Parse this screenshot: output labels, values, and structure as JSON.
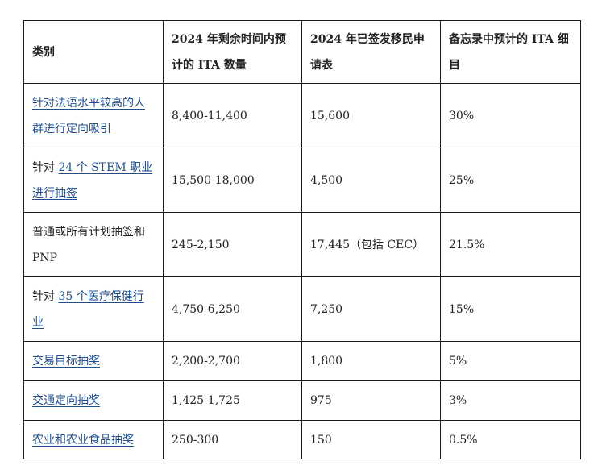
{
  "table": {
    "headers": [
      "类别",
      "2024 年剩余时间内预计的 ITA 数量",
      "2024 年已签发移民申请表",
      "备忘录中预计的 ITA 细目"
    ],
    "rows": [
      {
        "category_prefix": "",
        "category_link": "针对法语水平较高的人群进行定向吸引",
        "category_suffix": "",
        "expected_itas": "8,400-11,400",
        "issued_2024": "15,600",
        "breakdown": "30%"
      },
      {
        "category_prefix": "针对 ",
        "category_link": "24 个 STEM 职业进行抽签",
        "category_suffix": "",
        "expected_itas": "15,500-18,000",
        "issued_2024": "4,500",
        "breakdown": "25%"
      },
      {
        "category_prefix": "普通或所有计划抽签和 PNP",
        "category_link": "",
        "category_suffix": "",
        "expected_itas": "245-2,150",
        "issued_2024": "17,445（包括 CEC）",
        "breakdown": "21.5%"
      },
      {
        "category_prefix": "针对 ",
        "category_link": "35 个医疗保健行业",
        "category_suffix": "",
        "expected_itas": "4,750-6,250",
        "issued_2024": "7,250",
        "breakdown": "15%"
      },
      {
        "category_prefix": "",
        "category_link": "交易目标抽奖",
        "category_suffix": "",
        "expected_itas": "2,200-2,700",
        "issued_2024": "1,800",
        "breakdown": "5%"
      },
      {
        "category_prefix": "",
        "category_link": "交通定向抽奖",
        "category_suffix": "",
        "expected_itas": "1,425-1,725",
        "issued_2024": "975",
        "breakdown": "3%"
      },
      {
        "category_prefix": "",
        "category_link": "农业和农业食品抽奖",
        "category_suffix": "",
        "expected_itas": "250-300",
        "issued_2024": "150",
        "breakdown": "0.5%"
      }
    ]
  },
  "colors": {
    "text": "#222222",
    "link": "#1f4e8c",
    "border": "#1a1a1a"
  }
}
